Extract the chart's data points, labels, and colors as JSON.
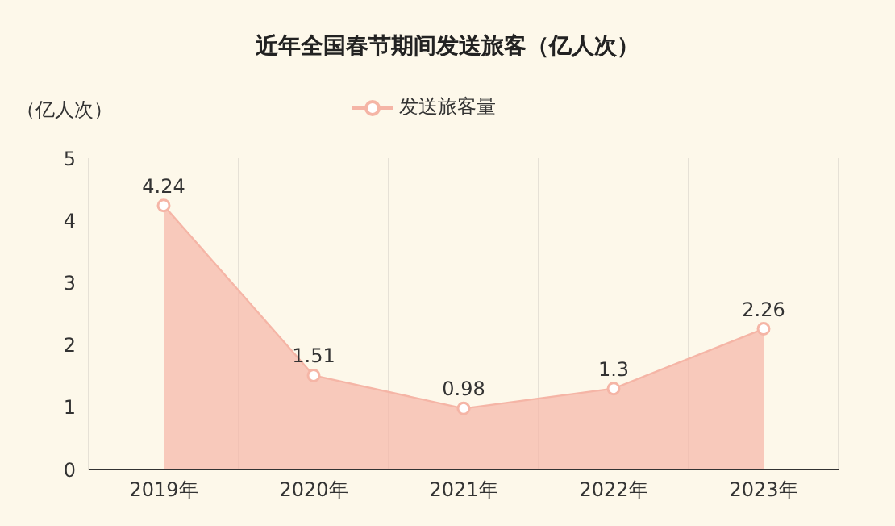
{
  "chart_data": {
    "type": "area",
    "title": "近年全国春节期间发送旅客（亿人次）",
    "ylabel": "（亿人次）",
    "categories": [
      "2019年",
      "2020年",
      "2021年",
      "2022年",
      "2023年"
    ],
    "series": [
      {
        "name": "发送旅客量",
        "color": "#f5b5a6",
        "values": [
          4.24,
          1.51,
          0.98,
          1.3,
          2.26
        ]
      }
    ],
    "ylim": [
      0,
      5
    ],
    "yticks": [
      0,
      1,
      2,
      3,
      4,
      5
    ],
    "grid": "x",
    "legend": "top",
    "marker": "circle",
    "data_labels": true
  }
}
